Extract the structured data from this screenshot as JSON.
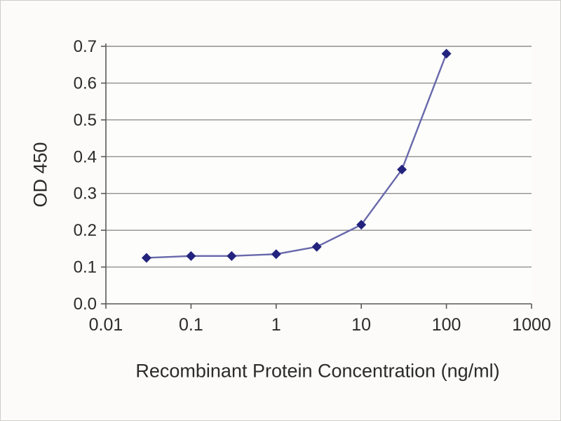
{
  "page": {
    "background": "#fcfbf9",
    "border_color": "#cfcdc8"
  },
  "chart_data": {
    "type": "line",
    "title": "",
    "xlabel": "Recombinant Protein Concentration (ng/ml)",
    "ylabel": "OD 450",
    "x_scale": "log",
    "xlim": [
      0.01,
      1000
    ],
    "ylim": [
      0.0,
      0.7
    ],
    "x_ticks": [
      0.01,
      0.1,
      1,
      10,
      100,
      1000
    ],
    "x_tick_labels": [
      "0.01",
      "0.1",
      "1",
      "10",
      "100",
      "1000"
    ],
    "y_ticks": [
      0.0,
      0.1,
      0.2,
      0.3,
      0.4,
      0.5,
      0.6,
      0.7
    ],
    "y_tick_labels": [
      "0.0",
      "0.1",
      "0.2",
      "0.3",
      "0.4",
      "0.5",
      "0.6",
      "0.7"
    ],
    "grid": "horizontal",
    "legend": "none",
    "colors": {
      "grid": "#8f8f8f",
      "axis": "#5a5a5a",
      "tick_text": "#2b2b2b",
      "line": "#6868ab",
      "marker": "#23237e",
      "plot_background": "#fdfdfc"
    },
    "series": [
      {
        "name": "OD 450",
        "marker": "diamond",
        "x": [
          0.03,
          0.1,
          0.3,
          1,
          3,
          10,
          30,
          100
        ],
        "y": [
          0.125,
          0.13,
          0.13,
          0.135,
          0.155,
          0.215,
          0.365,
          0.68
        ]
      }
    ]
  }
}
